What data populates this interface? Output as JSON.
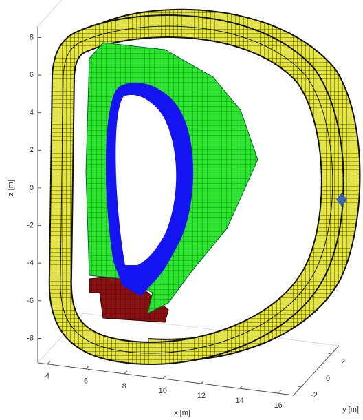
{
  "chart_data": {
    "type": "mesh3d",
    "xlabel": "x [m]",
    "ylabel": "y [m]",
    "zlabel": "z [m]",
    "xlim": [
      3.5,
      16.8
    ],
    "ylim": [
      -3,
      3
    ],
    "zlim": [
      -9.3,
      8.6
    ],
    "xticks": [
      4,
      6,
      8,
      10,
      12,
      14,
      16
    ],
    "yticks": [
      -2,
      0,
      2
    ],
    "zticks": [
      -8,
      -6,
      -4,
      -2,
      0,
      2,
      4,
      6,
      8
    ]
  }
}
